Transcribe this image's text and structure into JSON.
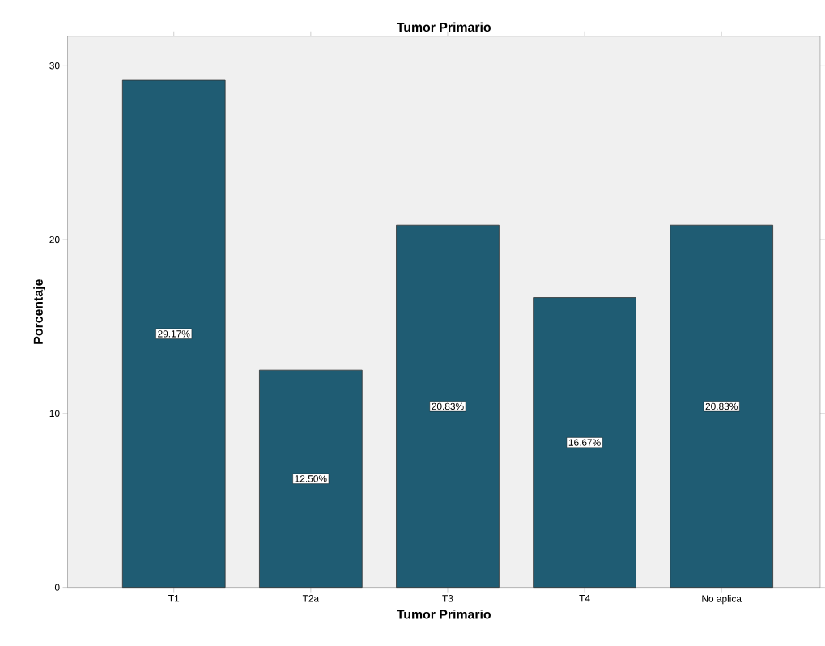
{
  "chart_data": {
    "type": "bar",
    "title": "Tumor Primario",
    "xlabel": "Tumor Primario",
    "ylabel": "Porcentaje",
    "categories": [
      "T1",
      "T2a",
      "T3",
      "T4",
      "No aplica"
    ],
    "values": [
      29.17,
      12.5,
      20.83,
      16.67,
      20.83
    ],
    "value_labels": [
      "29.17%",
      "12.50%",
      "20.83%",
      "16.67%",
      "20.83%"
    ],
    "color": "#1f5c73",
    "ylim": [
      0,
      31.7
    ],
    "yticks": [
      0,
      10,
      20,
      30
    ]
  }
}
